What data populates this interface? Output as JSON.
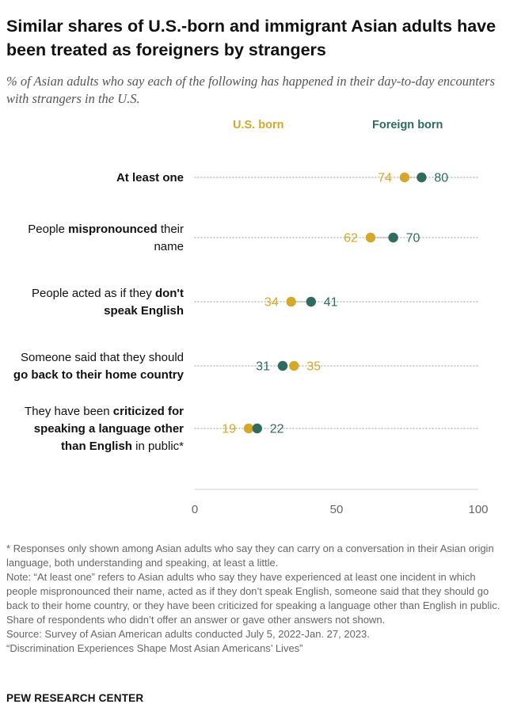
{
  "title": "Similar shares of U.S.-born and immigrant Asian adults have been treated as foreigners by strangers",
  "subtitle": "% of Asian adults who say each of the following has happened in their day-to-day encounters with strangers in the U.S.",
  "colors": {
    "us_born": "#d4a82a",
    "foreign_born": "#2f6b5e",
    "dotted_line": "#bbbbbb",
    "axis_line": "#cccccc",
    "tick_label": "#666666"
  },
  "chart_data": {
    "type": "dot",
    "x_range": [
      0,
      100
    ],
    "x_ticks": [
      "0",
      "50",
      "100"
    ],
    "series": [
      {
        "name": "U.S. born",
        "values": [
          74,
          62,
          34,
          35,
          19
        ]
      },
      {
        "name": "Foreign born",
        "values": [
          80,
          70,
          41,
          31,
          22
        ]
      }
    ],
    "categories": [
      [
        {
          "text": "At least one",
          "bold": true
        }
      ],
      [
        {
          "text": "People ",
          "bold": false
        },
        {
          "text": "mispronounced",
          "bold": true
        },
        {
          "text": " their name",
          "bold": false
        }
      ],
      [
        {
          "text": "People acted as if they ",
          "bold": false
        },
        {
          "text": "don't speak English",
          "bold": true
        }
      ],
      [
        {
          "text": "Someone said that they should ",
          "bold": false
        },
        {
          "text": "go back to their home country",
          "bold": true
        }
      ],
      [
        {
          "text": "They have been ",
          "bold": false
        },
        {
          "text": "criticized for speaking a language other than English",
          "bold": true
        },
        {
          "text": " in public*",
          "bold": false
        }
      ]
    ]
  },
  "notes": [
    "* Responses only shown among Asian adults who say they can carry on a conversation in their Asian origin language, both understanding and speaking, at least a little.",
    "Note: “At least one” refers to Asian adults who say they have experienced at least one incident in which people mispronounced their name, acted as if they don’t speak English, someone said that they should go back to their home country, or they have been criticized for speaking a language other than English in public. Share of respondents who didn’t offer an answer or gave other answers not shown.",
    "Source: Survey of Asian American adults conducted July 5, 2022-Jan. 27, 2023.",
    "“Discrimination Experiences Shape Most Asian Americans’ Lives”"
  ],
  "brand": "PEW RESEARCH CENTER"
}
